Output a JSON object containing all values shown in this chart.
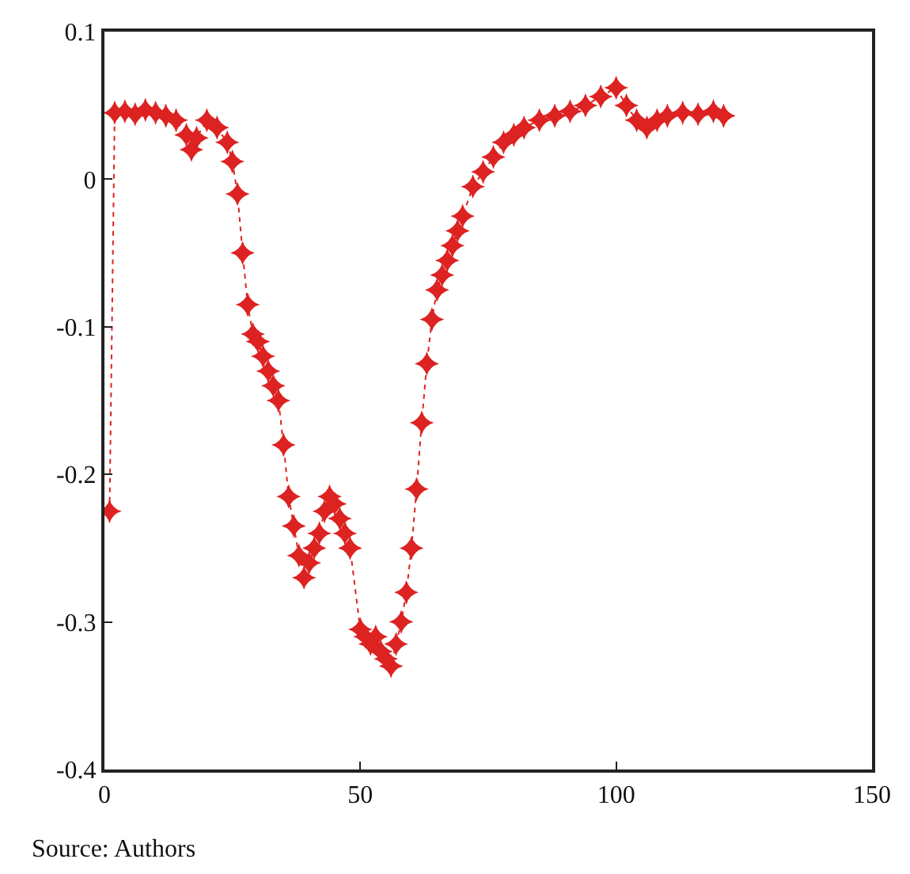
{
  "chart_data": {
    "type": "line",
    "marker": "star",
    "line_style": "dotted",
    "xlim": [
      0,
      150
    ],
    "xticks": [
      0,
      50,
      100,
      150
    ],
    "ylim": [
      -0.4,
      0.1
    ],
    "yticks": [
      -0.4,
      -0.3,
      -0.2,
      -0.1,
      0,
      0.1
    ],
    "annotations": [
      "Source: Authors"
    ],
    "series": [
      {
        "color": "#dd2222",
        "x": [
          1,
          2,
          4,
          6,
          8,
          10,
          12,
          14,
          16,
          17,
          18,
          20,
          22,
          24,
          25,
          26,
          27,
          28,
          29,
          30,
          31,
          32,
          33,
          34,
          35,
          36,
          37,
          38,
          39,
          40,
          41,
          42,
          43,
          44,
          45,
          46,
          47,
          48,
          50,
          51,
          52,
          53,
          54,
          55,
          56,
          57,
          58,
          59,
          60,
          61,
          62,
          63,
          64,
          65,
          66,
          67,
          68,
          69,
          70,
          72,
          74,
          76,
          78,
          80,
          82,
          85,
          88,
          91,
          94,
          97,
          100,
          102,
          104,
          106,
          108,
          110,
          113,
          116,
          119,
          121
        ],
        "values": [
          -0.225,
          0.045,
          0.046,
          0.044,
          0.047,
          0.045,
          0.043,
          0.04,
          0.03,
          0.02,
          0.028,
          0.04,
          0.035,
          0.025,
          0.012,
          -0.01,
          -0.05,
          -0.085,
          -0.105,
          -0.11,
          -0.12,
          -0.13,
          -0.14,
          -0.15,
          -0.18,
          -0.215,
          -0.235,
          -0.255,
          -0.27,
          -0.26,
          -0.25,
          -0.24,
          -0.225,
          -0.215,
          -0.22,
          -0.23,
          -0.24,
          -0.25,
          -0.305,
          -0.31,
          -0.315,
          -0.31,
          -0.32,
          -0.325,
          -0.33,
          -0.315,
          -0.3,
          -0.28,
          -0.25,
          -0.21,
          -0.165,
          -0.125,
          -0.095,
          -0.075,
          -0.065,
          -0.055,
          -0.045,
          -0.035,
          -0.025,
          -0.005,
          0.005,
          0.015,
          0.025,
          0.03,
          0.035,
          0.04,
          0.043,
          0.046,
          0.05,
          0.056,
          0.062,
          0.05,
          0.04,
          0.035,
          0.04,
          0.043,
          0.045,
          0.044,
          0.046,
          0.043
        ]
      }
    ]
  }
}
